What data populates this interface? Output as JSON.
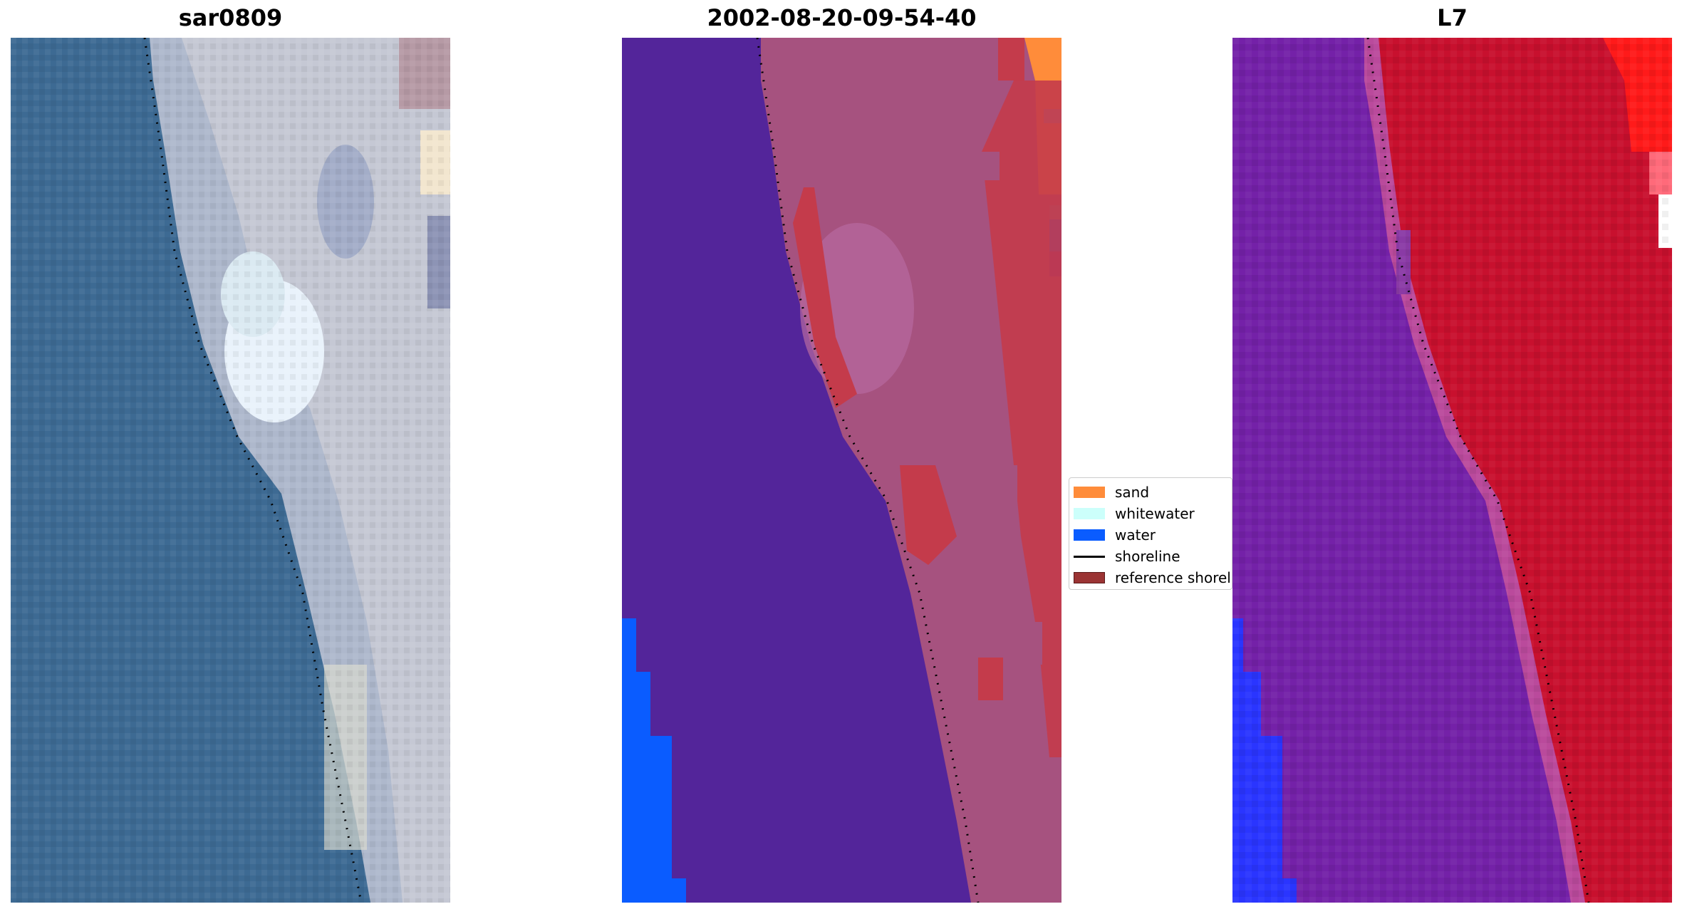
{
  "panels": [
    {
      "title": "sar0809"
    },
    {
      "title": "2002-08-20-09-54-40"
    },
    {
      "title": "L7"
    }
  ],
  "legend": {
    "items": [
      {
        "label": "sand",
        "color": "#ff8c3a",
        "kind": "patch"
      },
      {
        "label": "whitewater",
        "color": "#ccfffb",
        "kind": "patch"
      },
      {
        "label": "water",
        "color": "#0a5cff",
        "kind": "patch"
      },
      {
        "label": "shoreline",
        "color": "#000000",
        "kind": "line"
      },
      {
        "label": "reference shoreline",
        "color": "#9b3434",
        "kind": "patch"
      }
    ]
  },
  "colors": {
    "ocean_rgb": "#3e6b95",
    "beach_rgb": "#c6c9d3",
    "class_ocean": "#53259a",
    "class_land": "#a6527f",
    "class_sand": "#ff8c3a",
    "class_water": "#0a5cff",
    "class_red": "#c43b4b",
    "ndwi_water": "#6a1aa8",
    "ndwi_land": "#c8102e",
    "ndwi_blue": "#2a35ff",
    "ndwi_bright": "#ff1a1a"
  }
}
